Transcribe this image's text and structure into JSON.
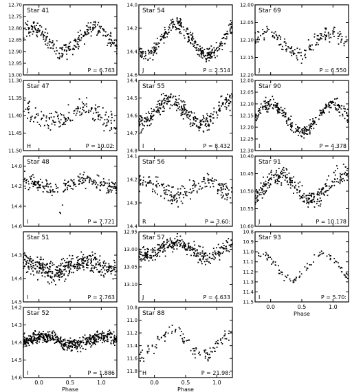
{
  "figure": {
    "xlabel": "Phase"
  },
  "chart_data": [
    {
      "type": "scatter",
      "star": "Star 41",
      "band": "J",
      "period": "P = 6.763",
      "ylim": [
        13.0,
        12.7
      ],
      "yticks": [
        "12.70",
        "12.75",
        "12.80",
        "12.85",
        "12.90",
        "12.95",
        "13.00"
      ],
      "ytickvals": [
        12.7,
        12.75,
        12.8,
        12.85,
        12.9,
        12.95,
        13.0
      ],
      "xticks": [],
      "xlabel": "",
      "shape": {
        "mean": 12.85,
        "amp": 0.05,
        "scatter": 0.025,
        "n": 260,
        "phase": 0.15,
        "kind": "sin"
      }
    },
    {
      "type": "scatter",
      "star": "Star 54",
      "band": "J",
      "period": "P = 2.514",
      "ylim": [
        14.6,
        14.0
      ],
      "yticks": [
        "14.0",
        "14.2",
        "14.4",
        "14.6"
      ],
      "ytickvals": [
        14.0,
        14.2,
        14.4,
        14.6
      ],
      "xticks": [],
      "xlabel": "",
      "shape": {
        "mean": 14.3,
        "amp": 0.13,
        "scatter": 0.04,
        "n": 320,
        "phase": 0.6,
        "kind": "sin"
      }
    },
    {
      "type": "scatter",
      "star": "Star 69",
      "band": "J",
      "period": "P = 6.550",
      "ylim": [
        12.2,
        12.0
      ],
      "yticks": [
        "12.00",
        "12.05",
        "12.10",
        "12.15",
        "12.20"
      ],
      "ytickvals": [
        12.0,
        12.05,
        12.1,
        12.15,
        12.2
      ],
      "xticks": [],
      "xlabel": "",
      "shape": {
        "mean": 12.11,
        "amp": 0.03,
        "scatter": 0.015,
        "n": 160,
        "phase": 0.2,
        "kind": "sin"
      }
    },
    {
      "type": "scatter",
      "star": "Star 47",
      "band": "H",
      "period": "P = 10.02:",
      "ylim": [
        11.5,
        11.3
      ],
      "yticks": [
        "11.30",
        "11.35",
        "11.40",
        "11.45",
        "11.50"
      ],
      "ytickvals": [
        11.3,
        11.35,
        11.4,
        11.45,
        11.5
      ],
      "xticks": [],
      "xlabel": "",
      "shape": {
        "mean": 11.4,
        "amp": 0.02,
        "scatter": 0.02,
        "n": 180,
        "phase": 0.0,
        "kind": "sin"
      }
    },
    {
      "type": "scatter",
      "star": "Star 55",
      "band": "I",
      "period": "P = 8.432",
      "ylim": [
        14.8,
        14.4
      ],
      "yticks": [
        "14.4",
        "14.5",
        "14.6",
        "14.7",
        "14.8"
      ],
      "ytickvals": [
        14.4,
        14.5,
        14.6,
        14.7,
        14.8
      ],
      "xticks": [],
      "xlabel": "",
      "shape": {
        "mean": 14.58,
        "amp": 0.07,
        "scatter": 0.035,
        "n": 320,
        "phase": 0.5,
        "kind": "sin"
      }
    },
    {
      "type": "scatter",
      "star": "Star 90",
      "band": "I",
      "period": "P = 4.378",
      "ylim": [
        12.3,
        12.0
      ],
      "yticks": [
        "12.00",
        "12.05",
        "12.10",
        "12.15",
        "12.20",
        "12.25",
        "12.30"
      ],
      "ytickvals": [
        12.0,
        12.05,
        12.1,
        12.15,
        12.2,
        12.25,
        12.3
      ],
      "xticks": [],
      "xlabel": "",
      "shape": {
        "mean": 12.16,
        "amp": 0.06,
        "scatter": 0.02,
        "n": 300,
        "phase": 0.25,
        "kind": "sin"
      }
    },
    {
      "type": "scatter",
      "star": "Star 48",
      "band": "I",
      "period": "P = 7.721",
      "ylim": [
        14.6,
        13.9
      ],
      "yticks": [
        "14.0",
        "14.2",
        "14.4",
        "14.6"
      ],
      "ytickvals": [
        14.0,
        14.2,
        14.4,
        14.6
      ],
      "xticks": [],
      "xlabel": "",
      "shape": {
        "mean": 14.18,
        "amp": 0.08,
        "scatter": 0.05,
        "n": 220,
        "phase": 0.35,
        "kind": "dip"
      }
    },
    {
      "type": "scatter",
      "star": "Star 56",
      "band": "R",
      "period": "P = 3.60:",
      "ylim": [
        14.4,
        14.1
      ],
      "yticks": [
        "14.1",
        "14.2",
        "14.3",
        "14.4"
      ],
      "ytickvals": [
        14.1,
        14.2,
        14.3,
        14.4
      ],
      "xticks": [],
      "xlabel": "",
      "shape": {
        "mean": 14.24,
        "amp": 0.03,
        "scatter": 0.03,
        "n": 200,
        "phase": 0.1,
        "kind": "sin"
      }
    },
    {
      "type": "scatter",
      "star": "Star 91",
      "band": "J",
      "period": "P = 10.178",
      "ylim": [
        10.6,
        10.4
      ],
      "yticks": [
        "10.40",
        "10.45",
        "10.50",
        "10.55",
        "10.60"
      ],
      "ytickvals": [
        10.4,
        10.45,
        10.5,
        10.55,
        10.6
      ],
      "xticks": [],
      "xlabel": "",
      "shape": {
        "mean": 10.49,
        "amp": 0.035,
        "scatter": 0.018,
        "n": 300,
        "phase": 0.4,
        "kind": "sin"
      }
    },
    {
      "type": "scatter",
      "star": "Star 51",
      "band": "I",
      "period": "P = 2.763",
      "ylim": [
        14.5,
        14.2
      ],
      "yticks": [
        "14.3",
        "14.4",
        "14.5"
      ],
      "ytickvals": [
        14.3,
        14.4,
        14.5
      ],
      "xticks": [],
      "xlabel": "",
      "shape": {
        "mean": 14.35,
        "amp": 0.02,
        "scatter": 0.03,
        "n": 420,
        "phase": 0.0,
        "kind": "sin"
      }
    },
    {
      "type": "scatter",
      "star": "Star 57",
      "band": "J",
      "period": "P = 4.633",
      "ylim": [
        13.15,
        12.95
      ],
      "yticks": [
        "12.95",
        "13.00",
        "13.05",
        "13.10"
      ],
      "ytickvals": [
        12.95,
        13.0,
        13.05,
        13.1
      ],
      "xticks": [],
      "xlabel": "",
      "shape": {
        "mean": 13.0,
        "amp": 0.02,
        "scatter": 0.015,
        "n": 320,
        "phase": 0.6,
        "kind": "sin"
      }
    },
    {
      "type": "scatter",
      "star": "Star 93",
      "band": "I",
      "period": "P = 5.70:",
      "ylim": [
        11.5,
        10.8
      ],
      "yticks": [
        "10.8",
        "10.9",
        "11.0",
        "11.1",
        "11.2",
        "11.3",
        "11.4",
        "11.5"
      ],
      "ytickvals": [
        10.8,
        10.9,
        11.0,
        11.1,
        11.2,
        11.3,
        11.4,
        11.5
      ],
      "xticks": [
        "0.0",
        "0.5",
        "1.0"
      ],
      "xtickvals": [
        0.0,
        0.5,
        1.0
      ],
      "xlabel": "Phase",
      "shape": {
        "mean": 11.15,
        "amp": 0.13,
        "scatter": 0.03,
        "n": 90,
        "phase": 0.1,
        "kind": "sin"
      }
    },
    {
      "type": "scatter",
      "star": "Star 52",
      "band": "I",
      "period": "P = 1.886",
      "ylim": [
        14.6,
        14.2
      ],
      "yticks": [
        "14.2",
        "14.3",
        "14.4",
        "14.5",
        "14.6"
      ],
      "ytickvals": [
        14.2,
        14.3,
        14.4,
        14.5,
        14.6
      ],
      "xticks": [
        "0.0",
        "0.5",
        "1.0"
      ],
      "xtickvals": [
        0.0,
        0.5,
        1.0
      ],
      "xlabel": "Phase",
      "shape": {
        "mean": 14.39,
        "amp": 0.025,
        "scatter": 0.025,
        "n": 520,
        "phase": 0.3,
        "kind": "sin"
      }
    },
    {
      "type": "scatter",
      "star": "Star 88",
      "band": "H",
      "period": "P = 21.98:",
      "ylim": [
        11.9,
        10.8
      ],
      "yticks": [
        "10.8",
        "11.0",
        "11.2",
        "11.4",
        "11.6",
        "11.8"
      ],
      "ytickvals": [
        10.8,
        11.0,
        11.2,
        11.4,
        11.6,
        11.8
      ],
      "xticks": [
        "0.0",
        "0.5",
        "1.0"
      ],
      "xtickvals": [
        0.0,
        0.5,
        1.0
      ],
      "xlabel": "Phase",
      "shape": {
        "mean": 11.35,
        "amp": 0.2,
        "scatter": 0.08,
        "n": 110,
        "phase": 0.55,
        "kind": "sin"
      }
    }
  ]
}
